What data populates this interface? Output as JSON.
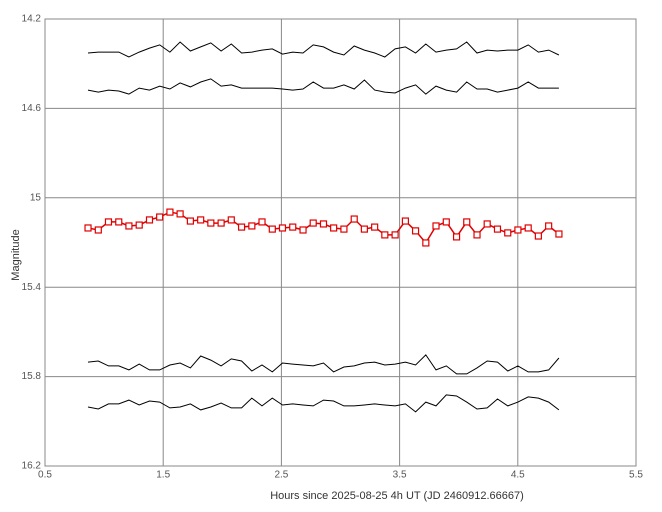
{
  "chart_data": {
    "type": "line",
    "xlabel": "Hours since 2025-08-25 4h UT (JD 2460912.66667)",
    "ylabel": "Magnitude",
    "x": [
      0.864,
      0.951,
      1.037,
      1.124,
      1.21,
      1.297,
      1.384,
      1.47,
      1.557,
      1.643,
      1.73,
      1.817,
      1.903,
      1.99,
      2.076,
      2.163,
      2.25,
      2.336,
      2.423,
      2.509,
      2.596,
      2.683,
      2.769,
      2.856,
      2.942,
      3.029,
      3.116,
      3.202,
      3.289,
      3.375,
      3.462,
      3.549,
      3.635,
      3.722,
      3.808,
      3.895,
      3.982,
      4.068,
      4.155,
      4.241,
      4.328,
      4.415,
      4.501,
      4.588,
      4.674,
      4.761,
      4.848
    ],
    "series": [
      {
        "color": "#e00000",
        "markers": true,
        "values": [
          15.135,
          15.144,
          15.108,
          15.108,
          15.126,
          15.122,
          15.099,
          15.086,
          15.064,
          15.072,
          15.104,
          15.099,
          15.113,
          15.113,
          15.099,
          15.131,
          15.126,
          15.108,
          15.14,
          15.135,
          15.131,
          15.144,
          15.113,
          15.117,
          15.135,
          15.14,
          15.095,
          15.14,
          15.131,
          15.166,
          15.166,
          15.104,
          15.148,
          15.202,
          15.126,
          15.108,
          15.175,
          15.108,
          15.166,
          15.117,
          15.14,
          15.157,
          15.144,
          15.135,
          15.171,
          15.126,
          15.162
        ]
      },
      {
        "color": "#000000",
        "markers": false,
        "values": [
          14.352,
          14.348,
          14.348,
          14.348,
          14.37,
          14.348,
          14.33,
          14.316,
          14.348,
          14.303,
          14.343,
          14.325,
          14.307,
          14.343,
          14.312,
          14.352,
          14.348,
          14.339,
          14.334,
          14.357,
          14.348,
          14.352,
          14.316,
          14.325,
          14.348,
          14.361,
          14.321,
          14.339,
          14.352,
          14.37,
          14.334,
          14.325,
          14.352,
          14.312,
          14.348,
          14.339,
          14.334,
          14.303,
          14.352,
          14.339,
          14.343,
          14.339,
          14.339,
          14.316,
          14.348,
          14.339,
          14.361
        ]
      },
      {
        "color": "#000000",
        "markers": false,
        "values": [
          14.518,
          14.527,
          14.518,
          14.522,
          14.536,
          14.509,
          14.518,
          14.5,
          14.513,
          14.486,
          14.504,
          14.482,
          14.468,
          14.5,
          14.495,
          14.509,
          14.509,
          14.509,
          14.509,
          14.513,
          14.518,
          14.513,
          14.482,
          14.509,
          14.509,
          14.495,
          14.513,
          14.473,
          14.518,
          14.527,
          14.531,
          14.509,
          14.495,
          14.536,
          14.5,
          14.518,
          14.527,
          14.482,
          14.513,
          14.513,
          14.527,
          14.518,
          14.509,
          14.482,
          14.509,
          14.509,
          14.509
        ]
      },
      {
        "color": "#000000",
        "markers": false,
        "values": [
          15.735,
          15.73,
          15.752,
          15.752,
          15.77,
          15.744,
          15.77,
          15.77,
          15.748,
          15.739,
          15.761,
          15.708,
          15.726,
          15.752,
          15.721,
          15.73,
          15.775,
          15.748,
          15.779,
          15.739,
          15.744,
          15.748,
          15.752,
          15.739,
          15.779,
          15.757,
          15.752,
          15.739,
          15.735,
          15.748,
          15.744,
          15.735,
          15.748,
          15.703,
          15.77,
          15.752,
          15.788,
          15.788,
          15.761,
          15.73,
          15.735,
          15.775,
          15.752,
          15.779,
          15.779,
          15.77,
          15.717
        ]
      },
      {
        "color": "#000000",
        "markers": false,
        "values": [
          15.936,
          15.945,
          15.922,
          15.922,
          15.905,
          15.927,
          15.909,
          15.914,
          15.94,
          15.936,
          15.922,
          15.949,
          15.936,
          15.918,
          15.94,
          15.94,
          15.896,
          15.931,
          15.896,
          15.927,
          15.922,
          15.927,
          15.931,
          15.905,
          15.909,
          15.931,
          15.931,
          15.927,
          15.922,
          15.927,
          15.931,
          15.922,
          15.958,
          15.914,
          15.931,
          15.882,
          15.887,
          15.914,
          15.945,
          15.94,
          15.9,
          15.931,
          15.914,
          15.891,
          15.896,
          15.914,
          15.949
        ]
      }
    ],
    "xlim": [
      0.5,
      5.5
    ],
    "xticks": [
      0.5,
      1.5,
      2.5,
      3.5,
      4.5,
      5.5
    ],
    "ylim": [
      14.2,
      16.2
    ],
    "yticks": [
      14.2,
      14.6,
      15,
      15.4,
      15.8,
      16.2
    ],
    "y_inverted": true,
    "grid": true
  }
}
